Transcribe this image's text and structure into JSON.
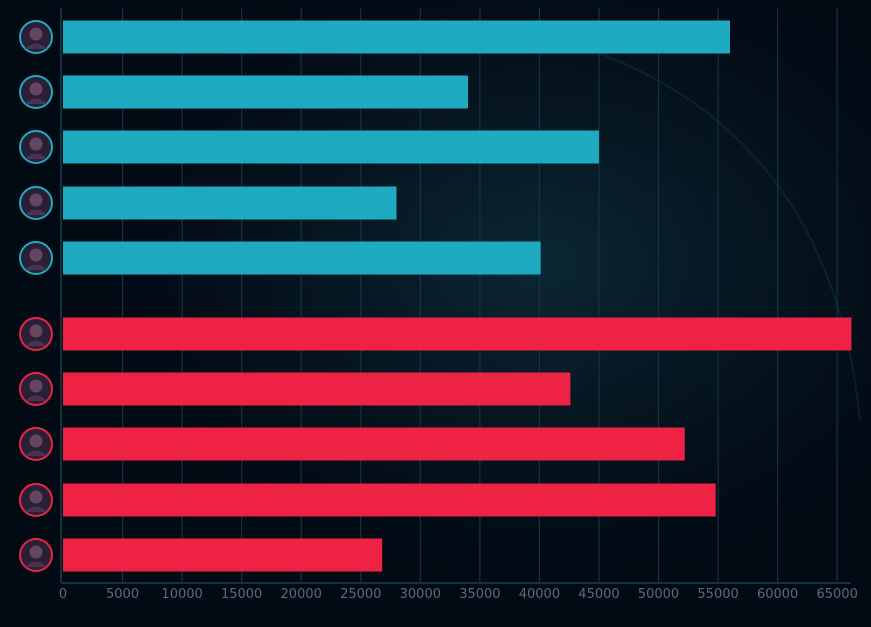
{
  "chart_data": {
    "type": "bar",
    "orientation": "horizontal",
    "title": "",
    "xlabel": "",
    "ylabel": "",
    "xlim": [
      0,
      66000
    ],
    "x_ticks": [
      "0",
      "5000",
      "10000",
      "15000",
      "20000",
      "25000",
      "30000",
      "35000",
      "40000",
      "45000",
      "50000",
      "55000",
      "60000",
      "65000"
    ],
    "grid": true,
    "groups": [
      {
        "team": "blue",
        "color": "#1eabc2",
        "bars": [
          {
            "icon": "champion-portrait-icon",
            "value": 56000
          },
          {
            "icon": "champion-portrait-icon",
            "value": 34000
          },
          {
            "icon": "champion-portrait-icon",
            "value": 45000
          },
          {
            "icon": "champion-portrait-icon",
            "value": 28000
          },
          {
            "icon": "champion-portrait-icon",
            "value": 40100
          }
        ]
      },
      {
        "team": "red",
        "color": "#ee2344",
        "bars": [
          {
            "icon": "champion-portrait-icon",
            "value": 66200
          },
          {
            "icon": "champion-portrait-icon",
            "value": 42600
          },
          {
            "icon": "champion-portrait-icon",
            "value": 52200
          },
          {
            "icon": "champion-portrait-icon",
            "value": 54800
          },
          {
            "icon": "champion-portrait-icon",
            "value": 26800
          }
        ]
      }
    ]
  },
  "colors": {
    "background": "#020a14",
    "grid": "#123440",
    "blue_ring": "#1eabc2",
    "red_ring": "#ee2344",
    "tick_text": "#5c6b78"
  }
}
